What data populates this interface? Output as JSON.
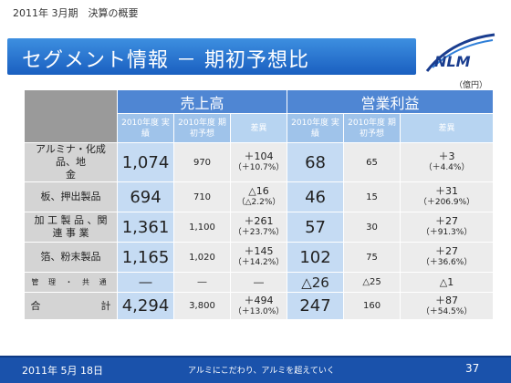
{
  "header": {
    "subtitle": "2011年 3月期　決算の概要",
    "title": "セグメント情報 － 期初予想比",
    "logo_text": "NLM",
    "unit": "（億円）"
  },
  "table": {
    "group_sales": "売上高",
    "group_profit": "営業利益",
    "col_actual": "2010年度 実績",
    "col_forecast": "2010年度 期初予想",
    "col_diff": "差異",
    "rows": [
      {
        "label": "アルミナ・化成品、地　　　　　金",
        "s_actual": "1,074",
        "s_fc": "970",
        "s_diff": "＋104",
        "s_pct": "（＋10.7%）",
        "p_actual": "68",
        "p_fc": "65",
        "p_diff": "＋3",
        "p_pct": "（＋4.4%）"
      },
      {
        "label": "板、押出製品",
        "s_actual": "694",
        "s_fc": "710",
        "s_diff": "△16",
        "s_pct": "（△2.2%）",
        "p_actual": "46",
        "p_fc": "15",
        "p_diff": "＋31",
        "p_pct": "（＋206.9%）"
      },
      {
        "label": "加 工 製 品 、関 連 事 業",
        "s_actual": "1,361",
        "s_fc": "1,100",
        "s_diff": "＋261",
        "s_pct": "（＋23.7%）",
        "p_actual": "57",
        "p_fc": "30",
        "p_diff": "＋27",
        "p_pct": "（＋91.3%）"
      },
      {
        "label": "箔、粉末製品",
        "s_actual": "1,165",
        "s_fc": "1,020",
        "s_diff": "＋145",
        "s_pct": "（＋14.2%）",
        "p_actual": "102",
        "p_fc": "75",
        "p_diff": "＋27",
        "p_pct": "（＋36.6%）"
      }
    ],
    "common": {
      "label": "管 理 ・ 共 通",
      "s_actual": "―",
      "s_fc": "―",
      "s_diff": "―",
      "p_actual": "△26",
      "p_fc": "△25",
      "p_diff": "△1"
    },
    "total": {
      "label": "合　　　　　　計",
      "s_actual": "4,294",
      "s_fc": "3,800",
      "s_diff": "＋494",
      "s_pct": "（＋13.0%）",
      "p_actual": "247",
      "p_fc": "160",
      "p_diff": "＋87",
      "p_pct": "（＋54.5%）"
    }
  },
  "footer": {
    "date": "2011年 5月 18日",
    "slogan": "アルミにこだわり、アルミを超えていく",
    "page": "37"
  },
  "colors": {
    "title_bar": "#1a5fc0",
    "footer_bar": "#1a52ab",
    "header_cell": "#4f86d3"
  }
}
